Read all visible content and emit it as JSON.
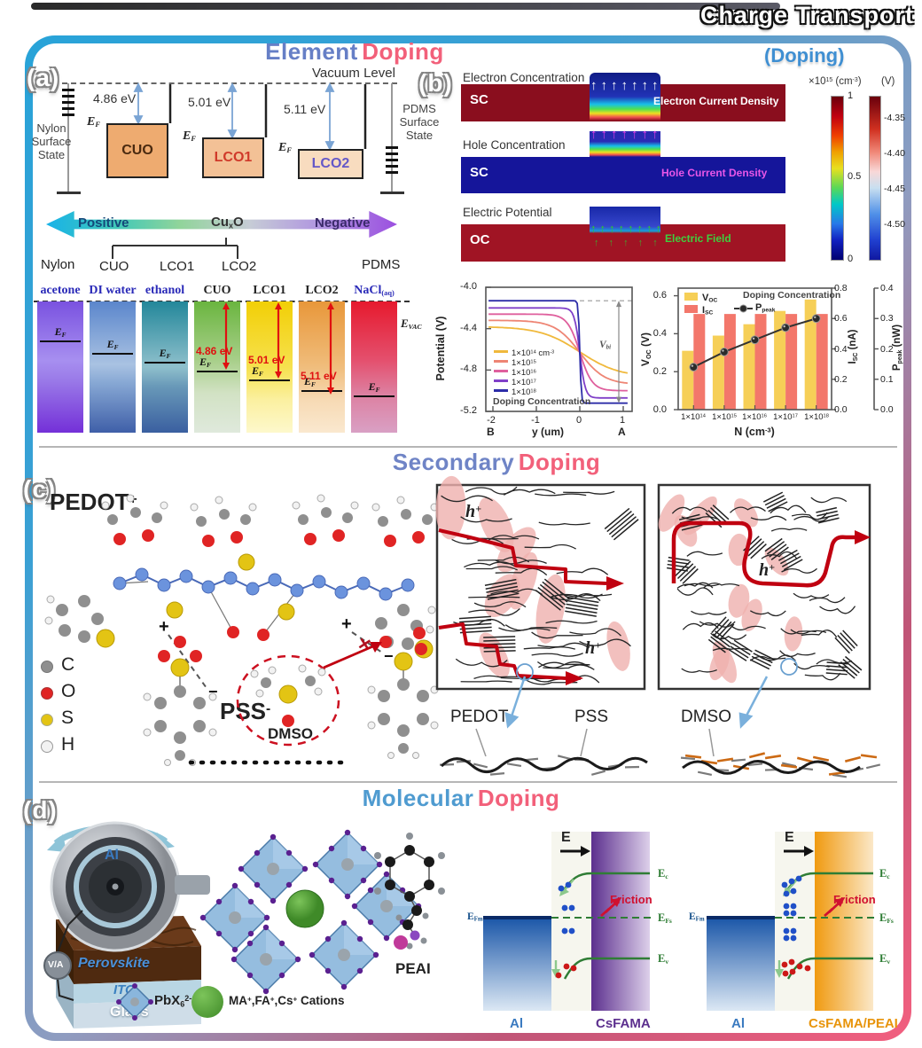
{
  "header": {
    "title": "Charge Transport",
    "subtitle": "(Doping)"
  },
  "panels": {
    "a": {
      "tag": "(a)",
      "heading": {
        "w1": "Element",
        "w2": "Doping"
      }
    },
    "b": {
      "tag": "(b)"
    },
    "c": {
      "tag": "(c)",
      "heading": {
        "w1": "Secondary",
        "w2": "Doping"
      }
    },
    "d": {
      "tag": "(d)",
      "heading": {
        "w1": "Molecular",
        "w2": "Doping"
      }
    }
  },
  "panel_a": {
    "vacuum": "Vacuum Level",
    "nylon_state": "Nylon Surface State",
    "pdms_state": "PDMS Surface State",
    "ef": "E_{F}",
    "evac": "E_{VAC}",
    "levels": [
      {
        "name": "CUO",
        "wf": "4.86 eV"
      },
      {
        "name": "LCO1",
        "wf": "5.01 eV"
      },
      {
        "name": "LCO2",
        "wf": "5.11 eV"
      }
    ],
    "scale": {
      "left": "Positive",
      "center": "Cu_{x}O",
      "right": "Negative"
    },
    "row": [
      "Nylon",
      "CUO",
      "LCO1",
      "LCO2",
      "PDMS"
    ],
    "bars": [
      {
        "name": "acetone"
      },
      {
        "name": "DI water"
      },
      {
        "name": "ethanol"
      },
      {
        "name": "CUO",
        "wf": "4.86 eV"
      },
      {
        "name": "LCO1",
        "wf": "5.01 eV"
      },
      {
        "name": "LCO2",
        "wf": "5.11 eV"
      },
      {
        "name": "NaCl_{(aq)}"
      }
    ]
  },
  "panel_b": {
    "rows": [
      {
        "title": "Electron Concentration",
        "region": "SC",
        "overlay": "Electron Current Density"
      },
      {
        "title": "Hole Concentration",
        "region": "SC",
        "overlay": "Hole Current Density"
      },
      {
        "title": "Electric Potential",
        "region": "OC",
        "overlay": "Electric Field"
      }
    ],
    "colorbar1": {
      "label": "×10^{15} (cm^{-3})",
      "ticks": [
        "1",
        "0.5",
        "0"
      ]
    },
    "colorbar2": {
      "label": "(V)",
      "ticks": [
        "-4.35",
        "-4.40",
        "-4.45",
        "-4.50"
      ]
    }
  },
  "chart1": {
    "ylabel": "Potential (V)",
    "xlabel": "y (um)",
    "yticks": [
      "-4.0",
      "-4.4",
      "-4.8",
      "-5.2"
    ],
    "xticks": [
      "-2",
      "-1",
      "0",
      "1"
    ],
    "corner_left": "B",
    "corner_right": "A",
    "legend": [
      "1×10^{14} cm^{-3}",
      "1×10^{15}",
      "1×10^{16}",
      "1×10^{17}",
      "1×10^{18}"
    ],
    "legend_title": "Doping Concentration",
    "vbi": "V_{bi}"
  },
  "chart2": {
    "ylabel": "V_{OC} (V)",
    "y2label": "I_{SC} (nA)",
    "y3label": "P_{peak} (nW)",
    "xlabel": "N (cm^{-3})",
    "title": "Doping Concentration",
    "legend": {
      "voc": "V_{OC}",
      "isc": "I_{SC}",
      "ppeak": "P_{peak}"
    },
    "yticks": [
      "0.0",
      "0.2",
      "0.4",
      "0.6"
    ],
    "y2ticks": [
      "0.0",
      "0.2",
      "0.4",
      "0.6",
      "0.8"
    ],
    "y3ticks": [
      "0.0",
      "0.1",
      "0.2",
      "0.3",
      "0.4"
    ],
    "xticks": [
      "1×10^{14}",
      "1×10^{15}",
      "1×10^{16}",
      "1×10^{17}",
      "1×10^{18}"
    ]
  },
  "chart_data": [
    {
      "type": "line",
      "title": "Doping Concentration",
      "xlabel": "y (um)",
      "ylabel": "Potential (V)",
      "xlim": [
        -2.2,
        1.2
      ],
      "ylim": [
        -5.2,
        -4.0
      ],
      "x_ticks": [
        -2,
        -1,
        0,
        1
      ],
      "y_ticks": [
        -4.0,
        -4.4,
        -4.8,
        -5.2
      ],
      "endpoint_labels": [
        "B",
        "A"
      ],
      "annotation": "V_bi",
      "right_axis_label": "V_OC (V)",
      "series": [
        {
          "name": "1×10^14 cm^-3",
          "color": "#f0b93c",
          "left_plateau": -4.38,
          "right_plateau": -4.87
        },
        {
          "name": "1×10^15",
          "color": "#ee8574",
          "left_plateau": -4.32,
          "right_plateau": -4.94
        },
        {
          "name": "1×10^16",
          "color": "#df5f9d",
          "left_plateau": -4.26,
          "right_plateau": -5.0
        },
        {
          "name": "1×10^17",
          "color": "#8040c8",
          "left_plateau": -4.2,
          "right_plateau": -5.07
        },
        {
          "name": "1×10^18",
          "color": "#2d2da8",
          "left_plateau": -4.13,
          "right_plateau": -5.12
        }
      ]
    },
    {
      "type": "bar+line",
      "title": "Doping Concentration",
      "xlabel": "N (cm^-3)",
      "categories": [
        "1×10^14",
        "1×10^15",
        "1×10^16",
        "1×10^17",
        "1×10^18"
      ],
      "axes": {
        "left": {
          "label": "V_OC (V)",
          "range": [
            0,
            0.64
          ],
          "ticks": [
            0,
            0.2,
            0.4,
            0.6
          ]
        },
        "right1": {
          "label": "I_SC (nA)",
          "range": [
            0,
            0.8
          ],
          "ticks": [
            0,
            0.2,
            0.4,
            0.6,
            0.8
          ]
        },
        "right2": {
          "label": "P_peak (nW)",
          "range": [
            0,
            0.4
          ],
          "ticks": [
            0,
            0.1,
            0.2,
            0.3,
            0.4
          ]
        }
      },
      "series": [
        {
          "name": "V_OC",
          "plot": "bar",
          "color": "#f6cf57",
          "axis": "left",
          "values": [
            0.31,
            0.39,
            0.45,
            0.52,
            0.58
          ]
        },
        {
          "name": "I_SC",
          "plot": "bar",
          "color": "#f3776b",
          "axis": "right1",
          "values": [
            0.63,
            0.63,
            0.63,
            0.63,
            0.63
          ]
        },
        {
          "name": "P_peak",
          "plot": "line",
          "color": "#333333",
          "axis": "right2",
          "values": [
            0.14,
            0.19,
            0.23,
            0.27,
            0.3
          ]
        }
      ]
    }
  ],
  "panel_c": {
    "pedot": "PEDOT^{+}",
    "pss": "PSS^{-}",
    "dmso_label": "DMSO",
    "hole": "h^{+}",
    "atoms": [
      {
        "s": "C",
        "color": "#8f8f8f"
      },
      {
        "s": "O",
        "color": "#e02424"
      },
      {
        "s": "S",
        "color": "#e3c414"
      },
      {
        "s": "H",
        "color": "#f2f2f2"
      }
    ],
    "films": {
      "pedot": "PEDOT",
      "pss": "PSS",
      "dmso": "DMSO"
    }
  },
  "panel_d": {
    "roller": "Al",
    "meter": "V/A",
    "perovskite": "Perovskite",
    "ito": "ITO",
    "glass": "Glass",
    "legend": {
      "octahedron": "PbX_{6}^{2-}",
      "cations": "MA^{+},FA^{+},Cs^{+} Cations"
    },
    "peai": "PEAI",
    "bands": [
      {
        "metal": "Al",
        "sc": "CsFAMA",
        "efm": "E_{Fm}",
        "field": "E",
        "friction": "Friction",
        "ec": "E_{c}",
        "efs": "E_{Fs}",
        "ev": "E_{v}"
      },
      {
        "metal": "Al",
        "sc": "CsFAMA/PEAI",
        "efm": "E_{Fm}",
        "field": "E",
        "friction": "Friction",
        "ec": "E_{c}",
        "efs": "E_{Fs}",
        "ev": "E_{v}"
      }
    ]
  }
}
